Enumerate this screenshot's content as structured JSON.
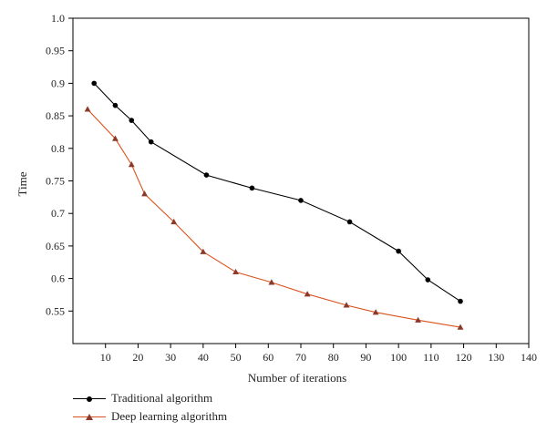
{
  "chart_data": {
    "type": "line",
    "xlabel": "Number of iterations",
    "ylabel": "Time",
    "xlim": [
      0,
      140
    ],
    "ylim": [
      0.5,
      1.0
    ],
    "xticks": [
      10,
      20,
      30,
      40,
      50,
      60,
      70,
      80,
      90,
      100,
      110,
      120,
      130,
      140
    ],
    "yticks": [
      0.55,
      0.6,
      0.65,
      0.7,
      0.75,
      0.8,
      0.85,
      0.9,
      0.95,
      1.0
    ],
    "xtick_labels": [
      "10",
      "20",
      "30",
      "40",
      "50",
      "60",
      "70",
      "80",
      "90",
      "100",
      "110",
      "120",
      "130",
      "140"
    ],
    "ytick_labels": [
      "0.55",
      "0.6",
      "0.65",
      "0.7",
      "0.75",
      "0.8",
      "0.85",
      "0.9",
      "0.95",
      "1.0"
    ],
    "grid": false,
    "legend_position": "bottom-left",
    "series": [
      {
        "name": "Traditional algorithm",
        "color": "#000000",
        "marker": "circle",
        "x": [
          6.5,
          13,
          18,
          24,
          41,
          55,
          70,
          85,
          100,
          109,
          119
        ],
        "y": [
          0.9,
          0.866,
          0.843,
          0.81,
          0.759,
          0.739,
          0.72,
          0.687,
          0.642,
          0.598,
          0.565
        ]
      },
      {
        "name": "Deep learning algorithm",
        "color": "#d9531e",
        "marker": "triangle",
        "x": [
          4.5,
          13,
          18,
          22,
          31,
          40,
          50,
          61,
          72,
          84,
          93,
          106,
          119
        ],
        "y": [
          0.86,
          0.815,
          0.775,
          0.73,
          0.687,
          0.641,
          0.61,
          0.594,
          0.576,
          0.559,
          0.548,
          0.536,
          0.525
        ]
      }
    ]
  }
}
